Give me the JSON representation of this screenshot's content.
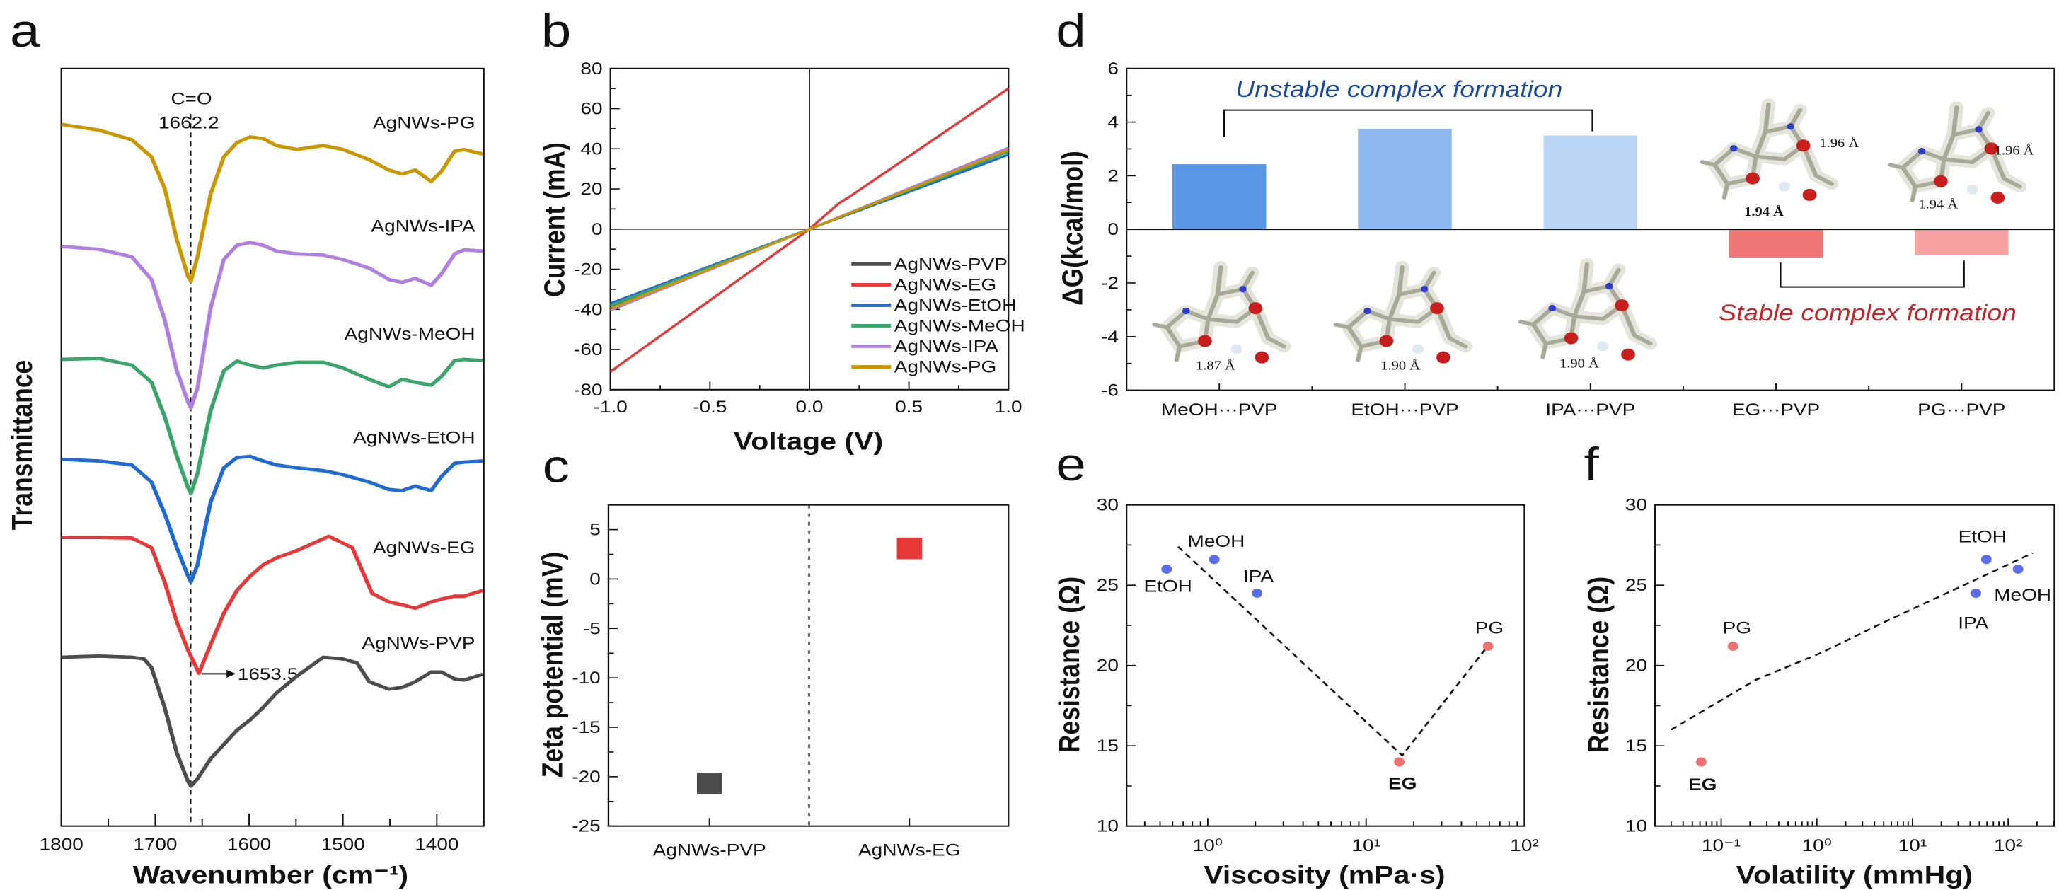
{
  "panel_letters": {
    "a": "a",
    "b": "b",
    "c": "c",
    "d": "d",
    "e": "e",
    "f": "f"
  },
  "chart_data": [
    {
      "panel": "a",
      "type": "line",
      "xlabel": "Wavenumber (cm⁻¹)",
      "ylabel": "Transmittance",
      "xlim": [
        1800,
        1350
      ],
      "ylim": [
        0,
        132.8
      ],
      "y_units": "a.u. (offset traces)",
      "xticks": [
        1800,
        1700,
        1600,
        1500,
        1400
      ],
      "reference_line": 1662.2,
      "annotations": {
        "bond": "C=O",
        "peak": "1662.2",
        "shifted_peak": "1653.5",
        "shifted_peak_x": 1653.5
      },
      "series": [
        {
          "name": "AgNWs-PG",
          "color": "#C99700",
          "x": [
            1800,
            1760,
            1725,
            1704,
            1690,
            1677,
            1665,
            1662,
            1655,
            1641,
            1627,
            1613,
            1599,
            1585,
            1571,
            1549,
            1521,
            1500,
            1472,
            1451,
            1437,
            1423,
            1406,
            1395,
            1381,
            1371,
            1351
          ],
          "y": [
            123.0,
            122.0,
            120.3,
            117.3,
            111.8,
            102.8,
            96.3,
            95.5,
            99.8,
            110.8,
            117.3,
            119.8,
            120.8,
            120.5,
            119.3,
            118.6,
            119.3,
            118.6,
            116.8,
            115.0,
            114.3,
            115.0,
            113.0,
            114.8,
            118.3,
            118.6,
            117.8
          ]
        },
        {
          "name": "AgNWs-IPA",
          "color": "#B07FE0",
          "x": [
            1800,
            1760,
            1725,
            1704,
            1690,
            1677,
            1665,
            1662,
            1655,
            1641,
            1627,
            1613,
            1599,
            1585,
            1571,
            1549,
            1521,
            1500,
            1472,
            1451,
            1437,
            1423,
            1406,
            1395,
            1381,
            1371,
            1351
          ],
          "y": [
            101.6,
            101.1,
            99.8,
            95.8,
            88.8,
            79.8,
            74.3,
            73.3,
            76.8,
            90.8,
            99.3,
            101.8,
            102.3,
            101.8,
            100.8,
            100.3,
            100.1,
            99.3,
            97.8,
            95.8,
            95.3,
            96.0,
            94.8,
            96.8,
            100.3,
            101.0,
            100.8
          ]
        },
        {
          "name": "AgNWs-MeOH",
          "color": "#3AA56B",
          "x": [
            1800,
            1760,
            1725,
            1704,
            1690,
            1677,
            1665,
            1662,
            1655,
            1641,
            1627,
            1613,
            1599,
            1585,
            1571,
            1549,
            1521,
            1500,
            1472,
            1451,
            1437,
            1423,
            1406,
            1395,
            1381,
            1371,
            1351
          ],
          "y": [
            81.8,
            82.0,
            80.8,
            77.8,
            71.8,
            64.8,
            59.3,
            58.3,
            61.8,
            72.8,
            79.8,
            81.5,
            80.8,
            80.3,
            80.8,
            81.3,
            81.3,
            80.3,
            78.3,
            77.0,
            78.3,
            77.8,
            77.3,
            78.8,
            81.6,
            81.8,
            81.6
          ]
        },
        {
          "name": "AgNWs-EtOH",
          "color": "#1F6BD2",
          "x": [
            1800,
            1760,
            1725,
            1704,
            1690,
            1677,
            1665,
            1662,
            1655,
            1641,
            1627,
            1613,
            1599,
            1585,
            1571,
            1549,
            1521,
            1500,
            1472,
            1451,
            1437,
            1423,
            1406,
            1395,
            1381,
            1371,
            1351
          ],
          "y": [
            64.3,
            64.0,
            63.3,
            60.3,
            54.8,
            48.8,
            43.8,
            42.8,
            45.8,
            56.8,
            62.8,
            64.6,
            64.8,
            64.0,
            63.3,
            62.8,
            62.3,
            61.6,
            60.3,
            59.0,
            58.8,
            59.6,
            58.8,
            61.3,
            63.6,
            63.8,
            64.0
          ]
        },
        {
          "name": "AgNWs-EG",
          "color": "#E8393A",
          "x": [
            1800,
            1760,
            1725,
            1704,
            1690,
            1677,
            1665,
            1662,
            1653.5,
            1641,
            1627,
            1613,
            1599,
            1585,
            1571,
            1549,
            1515,
            1490,
            1469,
            1451,
            1437,
            1423,
            1406,
            1395,
            1381,
            1371,
            1351
          ],
          "y": [
            50.6,
            50.6,
            50.5,
            48.8,
            42.8,
            35.8,
            30.8,
            29.8,
            26.8,
            31.8,
            37.3,
            41.3,
            43.8,
            45.8,
            47.0,
            48.3,
            50.8,
            48.8,
            40.8,
            39.3,
            38.8,
            38.2,
            39.3,
            39.8,
            40.3,
            40.3,
            41.3
          ]
        },
        {
          "name": "AgNWs-PVP",
          "color": "#4D4D4D",
          "x": [
            1800,
            1760,
            1725,
            1712,
            1704,
            1690,
            1677,
            1665,
            1662,
            1655,
            1641,
            1627,
            1613,
            1599,
            1585,
            1571,
            1549,
            1521,
            1500,
            1485,
            1472,
            1451,
            1437,
            1423,
            1406,
            1395,
            1381,
            1371,
            1351
          ],
          "y": [
            29.6,
            29.8,
            29.6,
            29.3,
            27.8,
            20.8,
            12.8,
            7.8,
            7.0,
            8.3,
            11.8,
            14.3,
            16.8,
            18.6,
            20.8,
            23.3,
            26.3,
            29.6,
            29.3,
            28.6,
            25.3,
            24.0,
            24.3,
            25.3,
            27.0,
            27.0,
            25.8,
            25.6,
            26.6
          ]
        }
      ]
    },
    {
      "panel": "b",
      "type": "line",
      "xlabel": "Voltage (V)",
      "ylabel": "Current (mA)",
      "xlim": [
        -1,
        1
      ],
      "ylim": [
        -80,
        80
      ],
      "xticks": [
        "-1.0",
        "-0.5",
        "0.0",
        "0.5",
        "1.0"
      ],
      "yticks": [
        "80",
        "60",
        "40",
        "20",
        "0",
        "-20",
        "-40",
        "-60",
        "-80"
      ],
      "legend": "bottom-right",
      "series": [
        {
          "name": "AgNWs-PVP",
          "color": "#4D4D4D",
          "x": [
            -1,
            0,
            1
          ],
          "y": [
            -38.5,
            0,
            38.5
          ]
        },
        {
          "name": "AgNWs-EG",
          "color": "#E8393A",
          "x": [
            -1,
            0,
            0.15,
            0.2,
            1
          ],
          "y": [
            -71,
            0,
            13,
            16,
            70
          ]
        },
        {
          "name": "AgNWs-EtOH",
          "color": "#1F6BD2",
          "x": [
            -1,
            0,
            1
          ],
          "y": [
            -37,
            0,
            37
          ]
        },
        {
          "name": "AgNWs-MeOH",
          "color": "#3AA56B",
          "x": [
            -1,
            0,
            1
          ],
          "y": [
            -38,
            0,
            38.5
          ]
        },
        {
          "name": "AgNWs-IPA",
          "color": "#B07FE0",
          "x": [
            -1,
            0,
            1
          ],
          "y": [
            -40.5,
            0,
            40.5
          ]
        },
        {
          "name": "AgNWs-PG",
          "color": "#C99700",
          "x": [
            -1,
            0,
            1
          ],
          "y": [
            -39.5,
            0,
            39.5
          ]
        }
      ]
    },
    {
      "panel": "c",
      "type": "scatter",
      "ylabel": "Zeta potential (mV)",
      "ylim": [
        -25,
        7.5
      ],
      "yticks": [
        "5",
        "0",
        "-5",
        "-10",
        "-15",
        "-20",
        "-25"
      ],
      "categories": [
        "AgNWs-PVP",
        "AgNWs-EG"
      ],
      "values": [
        -20.7,
        3.1
      ],
      "colors": [
        "#4D4D4D",
        "#E8393A"
      ]
    },
    {
      "panel": "d",
      "type": "bar",
      "ylabel": "ΔG(kcal/mol)",
      "ylim": [
        -6,
        6
      ],
      "yticks": [
        "6",
        "4",
        "2",
        "0",
        "-2",
        "-4",
        "-6"
      ],
      "categories": [
        "MeOH···PVP",
        "EtOH···PVP",
        "IPA···PVP",
        "EG···PVP",
        "PG···PVP"
      ],
      "values": [
        2.43,
        3.75,
        3.5,
        -1.05,
        -0.95
      ],
      "colors": [
        "#5A98E6",
        "#8DB8F0",
        "#BAD5F5",
        "#F07575",
        "#F7A2A2"
      ],
      "annotations": {
        "unstable": "Unstable complex formation",
        "unstable_color": "#1A4A9A",
        "stable": "Stable complex formation",
        "stable_color": "#C0282D",
        "distances": [
          "1.87 Å",
          "1.90 Å",
          "1.90 Å",
          "1.96 Å",
          "1.94 Å",
          "1.96 Å",
          "1.94 Å"
        ]
      }
    },
    {
      "panel": "e",
      "type": "scatter",
      "xlabel": "Viscosity (mPa·s)",
      "ylabel": "Resistance (Ω)",
      "xscale": "log",
      "xlim": [
        0.307,
        100
      ],
      "ylim": [
        10,
        30
      ],
      "xticks": [
        1,
        10,
        100
      ],
      "xtick_labels": [
        "10⁰",
        "10¹",
        "10²"
      ],
      "yticks": [
        "30",
        "25",
        "20",
        "15",
        "10"
      ],
      "points": [
        {
          "label": "EtOH",
          "x": 0.55,
          "y": 26.0,
          "color": "#5B6EE8"
        },
        {
          "label": "MeOH",
          "x": 1.1,
          "y": 26.6,
          "color": "#5B6EE8"
        },
        {
          "label": "IPA",
          "x": 2.05,
          "y": 24.5,
          "color": "#5B6EE8"
        },
        {
          "label": "EG",
          "x": 16.2,
          "y": 14.0,
          "color": "#F07070"
        },
        {
          "label": "PG",
          "x": 58.9,
          "y": 21.2,
          "color": "#F07070"
        }
      ],
      "fit": {
        "x": [
          0.65,
          16.9,
          60.7
        ],
        "y": [
          27.4,
          14.4,
          21.4
        ]
      }
    },
    {
      "panel": "f",
      "type": "scatter",
      "xlabel": "Volatility (mmHg)",
      "ylabel": "Resistance (Ω)",
      "xscale": "log",
      "xlim": [
        0.0204,
        304
      ],
      "ylim": [
        10,
        30
      ],
      "xticks": [
        0.1,
        1,
        10,
        100
      ],
      "xtick_labels": [
        "10⁻¹",
        "10⁰",
        "10¹",
        "10²"
      ],
      "yticks": [
        "30",
        "25",
        "20",
        "15",
        "10"
      ],
      "points": [
        {
          "label": "EG",
          "x": 0.062,
          "y": 14.0,
          "color": "#F07070"
        },
        {
          "label": "PG",
          "x": 0.133,
          "y": 21.2,
          "color": "#F07070"
        },
        {
          "label": "IPA",
          "x": 45.9,
          "y": 24.5,
          "color": "#5B6EE8"
        },
        {
          "label": "EtOH",
          "x": 59.2,
          "y": 26.6,
          "color": "#5B6EE8"
        },
        {
          "label": "MeOH",
          "x": 126.8,
          "y": 26.0,
          "color": "#5B6EE8"
        }
      ],
      "fit": {
        "x": [
          0.03,
          0.229,
          1.12,
          5.47,
          26.8,
          180
        ],
        "y": [
          16.0,
          19.1,
          20.8,
          22.8,
          24.7,
          27.0
        ]
      }
    }
  ]
}
